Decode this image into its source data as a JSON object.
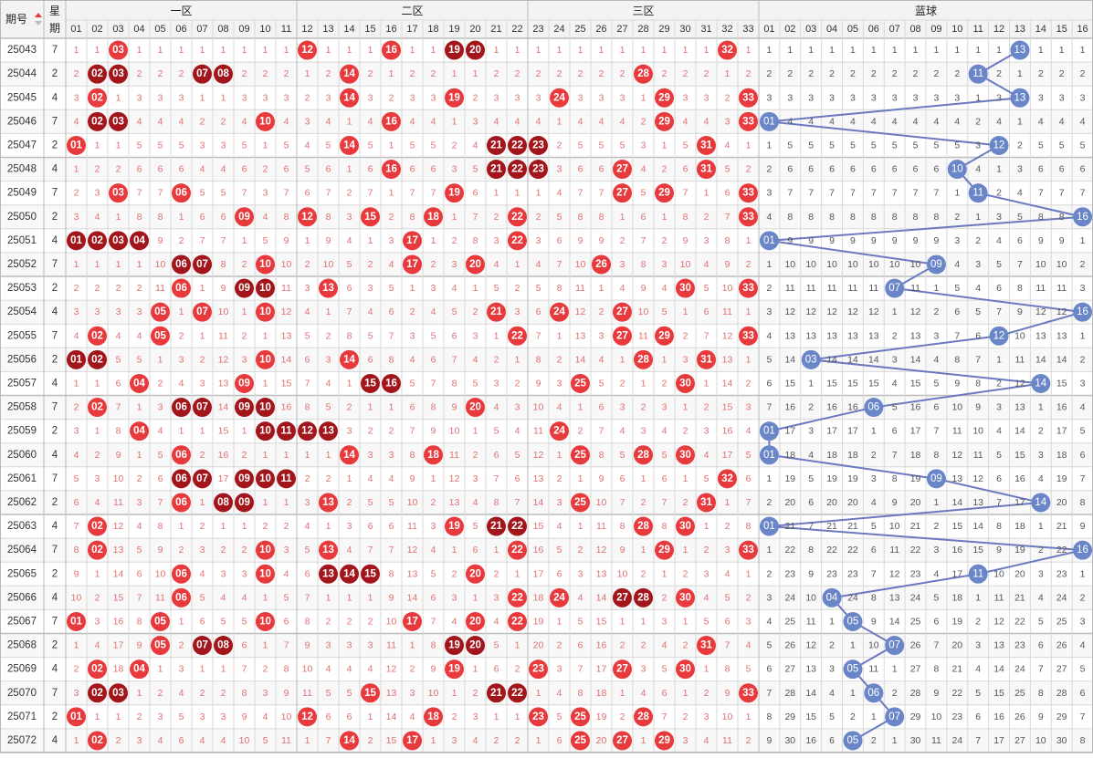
{
  "header": {
    "issue_label": "期号",
    "week_label_1": "星",
    "week_label_2": "期",
    "zone_labels": [
      "一区",
      "二区",
      "三区"
    ],
    "blue_label": "蓝球"
  },
  "colors": {
    "red_ball": "#e8393c",
    "dark_ball": "#a2151b",
    "blue_ball": "#6a86c8",
    "blue_line": "#6a79c0",
    "miss_red": "#e07070",
    "miss_gray": "#555555",
    "grid": "#d8d8d8",
    "header_bg": "#f3f3f3",
    "issue_text": "#333333"
  },
  "chart_data": {
    "type": "table",
    "red_columns": [
      "01",
      "02",
      "03",
      "04",
      "05",
      "06",
      "07",
      "08",
      "09",
      "10",
      "11",
      "12",
      "13",
      "14",
      "15",
      "16",
      "17",
      "18",
      "19",
      "20",
      "21",
      "22",
      "23",
      "24",
      "25",
      "26",
      "27",
      "28",
      "29",
      "30",
      "31",
      "32",
      "33"
    ],
    "blue_columns": [
      "01",
      "02",
      "03",
      "04",
      "05",
      "06",
      "07",
      "08",
      "09",
      "10",
      "11",
      "12",
      "13",
      "14",
      "15",
      "16"
    ],
    "rows": [
      {
        "issue": "25043",
        "week": "7",
        "red": [
          3,
          12,
          16,
          19,
          20,
          32
        ],
        "blue": 13
      },
      {
        "issue": "25044",
        "week": "2",
        "red": [
          2,
          3,
          7,
          8,
          14,
          28
        ],
        "blue": 11
      },
      {
        "issue": "25045",
        "week": "4",
        "red": [
          2,
          14,
          19,
          24,
          29,
          33
        ],
        "blue": 13
      },
      {
        "issue": "25046",
        "week": "7",
        "red": [
          2,
          3,
          10,
          16,
          29,
          33
        ],
        "blue": 1
      },
      {
        "issue": "25047",
        "week": "2",
        "red": [
          1,
          14,
          21,
          22,
          23,
          31
        ],
        "blue": 12
      },
      {
        "issue": "25048",
        "week": "4",
        "red": [
          16,
          21,
          22,
          23,
          27,
          31
        ],
        "blue": 10
      },
      {
        "issue": "25049",
        "week": "7",
        "red": [
          3,
          6,
          19,
          27,
          29,
          33
        ],
        "blue": 11
      },
      {
        "issue": "25050",
        "week": "2",
        "red": [
          9,
          12,
          15,
          18,
          22,
          33
        ],
        "blue": 16
      },
      {
        "issue": "25051",
        "week": "4",
        "red": [
          1,
          2,
          3,
          4,
          17,
          22
        ],
        "blue": 1
      },
      {
        "issue": "25052",
        "week": "7",
        "red": [
          6,
          7,
          10,
          17,
          20,
          26
        ],
        "blue": 9
      },
      {
        "issue": "25053",
        "week": "2",
        "red": [
          6,
          9,
          10,
          13,
          30,
          33
        ],
        "blue": 7
      },
      {
        "issue": "25054",
        "week": "4",
        "red": [
          5,
          7,
          10,
          21,
          24,
          27
        ],
        "blue": 16
      },
      {
        "issue": "25055",
        "week": "7",
        "red": [
          2,
          5,
          22,
          27,
          29,
          33
        ],
        "blue": 12
      },
      {
        "issue": "25056",
        "week": "2",
        "red": [
          1,
          2,
          10,
          14,
          28,
          31
        ],
        "blue": 3
      },
      {
        "issue": "25057",
        "week": "4",
        "red": [
          4,
          9,
          15,
          16,
          25,
          30
        ],
        "blue": 14
      },
      {
        "issue": "25058",
        "week": "7",
        "red": [
          2,
          6,
          7,
          9,
          10,
          20
        ],
        "blue": 6
      },
      {
        "issue": "25059",
        "week": "2",
        "red": [
          4,
          10,
          11,
          12,
          13,
          24
        ],
        "blue": 1
      },
      {
        "issue": "25060",
        "week": "4",
        "red": [
          6,
          14,
          18,
          25,
          28,
          30
        ],
        "blue": 1
      },
      {
        "issue": "25061",
        "week": "7",
        "red": [
          6,
          7,
          9,
          10,
          11,
          32
        ],
        "blue": 9
      },
      {
        "issue": "25062",
        "week": "2",
        "red": [
          6,
          8,
          9,
          13,
          25,
          31
        ],
        "blue": 14
      },
      {
        "issue": "25063",
        "week": "4",
        "red": [
          2,
          19,
          21,
          22,
          28,
          30
        ],
        "blue": 1
      },
      {
        "issue": "25064",
        "week": "7",
        "red": [
          2,
          10,
          13,
          22,
          29,
          33
        ],
        "blue": 16
      },
      {
        "issue": "25065",
        "week": "2",
        "red": [
          6,
          10,
          13,
          14,
          15,
          20
        ],
        "blue": 11
      },
      {
        "issue": "25066",
        "week": "4",
        "red": [
          6,
          22,
          24,
          27,
          28,
          30
        ],
        "blue": 4
      },
      {
        "issue": "25067",
        "week": "7",
        "red": [
          1,
          5,
          10,
          17,
          20,
          22
        ],
        "blue": 5
      },
      {
        "issue": "25068",
        "week": "2",
        "red": [
          5,
          7,
          8,
          19,
          20,
          31
        ],
        "blue": 7
      },
      {
        "issue": "25069",
        "week": "4",
        "red": [
          2,
          4,
          19,
          23,
          27,
          30
        ],
        "blue": 5
      },
      {
        "issue": "25070",
        "week": "7",
        "red": [
          2,
          3,
          15,
          21,
          22,
          33
        ],
        "blue": 6
      },
      {
        "issue": "25071",
        "week": "2",
        "red": [
          1,
          12,
          18,
          23,
          25,
          28
        ],
        "blue": 7
      },
      {
        "issue": "25072",
        "week": "4",
        "red": [
          2,
          14,
          17,
          25,
          27,
          29
        ],
        "blue": 5
      }
    ]
  }
}
